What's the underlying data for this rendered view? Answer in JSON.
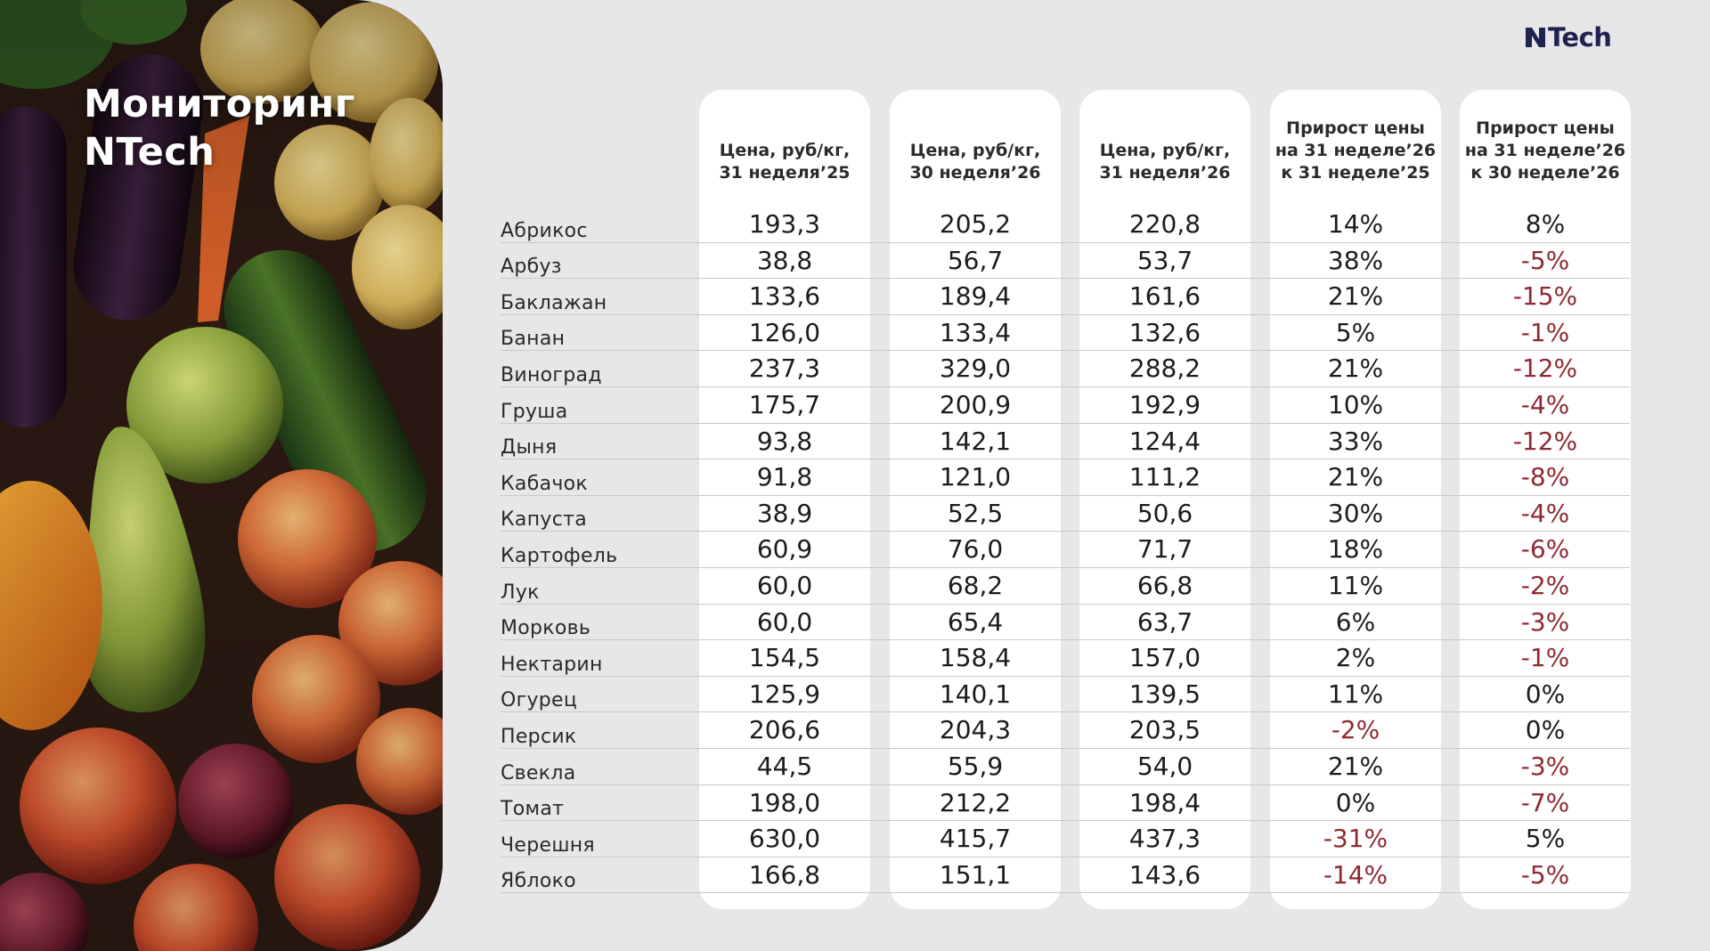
{
  "title": [
    "Мониторинг",
    "NTech"
  ],
  "logo": {
    "text": "Tech"
  },
  "colors": {
    "accent_negative": "#8e2a33",
    "brand": "#1f2350",
    "card": "#ffffff"
  },
  "columns": [
    [
      "Цена, руб/кг,",
      "31 неделя’25"
    ],
    [
      "Цена, руб/кг,",
      "30 неделя’26"
    ],
    [
      "Цена, руб/кг,",
      "31 неделя’26"
    ],
    [
      "Прирост цены",
      "на 31 неделе’26",
      "к 31 неделе’25"
    ],
    [
      "Прирост цены",
      "на 31 неделе’26",
      "к 30 неделе’26"
    ]
  ],
  "rows": [
    {
      "name": "Абрикос",
      "values": [
        "193,3",
        "205,2",
        "220,8",
        "14%",
        "8%"
      ]
    },
    {
      "name": "Арбуз",
      "values": [
        "38,8",
        "56,7",
        "53,7",
        "38%",
        "-5%"
      ]
    },
    {
      "name": "Баклажан",
      "values": [
        "133,6",
        "189,4",
        "161,6",
        "21%",
        "-15%"
      ]
    },
    {
      "name": "Банан",
      "values": [
        "126,0",
        "133,4",
        "132,6",
        "5%",
        "-1%"
      ]
    },
    {
      "name": "Виноград",
      "values": [
        "237,3",
        "329,0",
        "288,2",
        "21%",
        "-12%"
      ]
    },
    {
      "name": "Груша",
      "values": [
        "175,7",
        "200,9",
        "192,9",
        "10%",
        "-4%"
      ]
    },
    {
      "name": "Дыня",
      "values": [
        "93,8",
        "142,1",
        "124,4",
        "33%",
        "-12%"
      ]
    },
    {
      "name": "Кабачок",
      "values": [
        "91,8",
        "121,0",
        "111,2",
        "21%",
        "-8%"
      ]
    },
    {
      "name": "Капуста",
      "values": [
        "38,9",
        "52,5",
        "50,6",
        "30%",
        "-4%"
      ]
    },
    {
      "name": "Картофель",
      "values": [
        "60,9",
        "76,0",
        "71,7",
        "18%",
        "-6%"
      ]
    },
    {
      "name": "Лук",
      "values": [
        "60,0",
        "68,2",
        "66,8",
        "11%",
        "-2%"
      ]
    },
    {
      "name": "Морковь",
      "values": [
        "60,0",
        "65,4",
        "63,7",
        "6%",
        "-3%"
      ]
    },
    {
      "name": "Нектарин",
      "values": [
        "154,5",
        "158,4",
        "157,0",
        "2%",
        "-1%"
      ]
    },
    {
      "name": "Огурец",
      "values": [
        "125,9",
        "140,1",
        "139,5",
        "11%",
        "0%"
      ]
    },
    {
      "name": "Персик",
      "values": [
        "206,6",
        "204,3",
        "203,5",
        "-2%",
        "0%"
      ]
    },
    {
      "name": "Свекла",
      "values": [
        "44,5",
        "55,9",
        "54,0",
        "21%",
        "-3%"
      ]
    },
    {
      "name": "Томат",
      "values": [
        "198,0",
        "212,2",
        "198,4",
        "0%",
        "-7%"
      ]
    },
    {
      "name": "Черешня",
      "values": [
        "630,0",
        "415,7",
        "437,3",
        "-31%",
        "5%"
      ]
    },
    {
      "name": "Яблоко",
      "values": [
        "166,8",
        "151,1",
        "143,6",
        "-14%",
        "-5%"
      ]
    }
  ]
}
